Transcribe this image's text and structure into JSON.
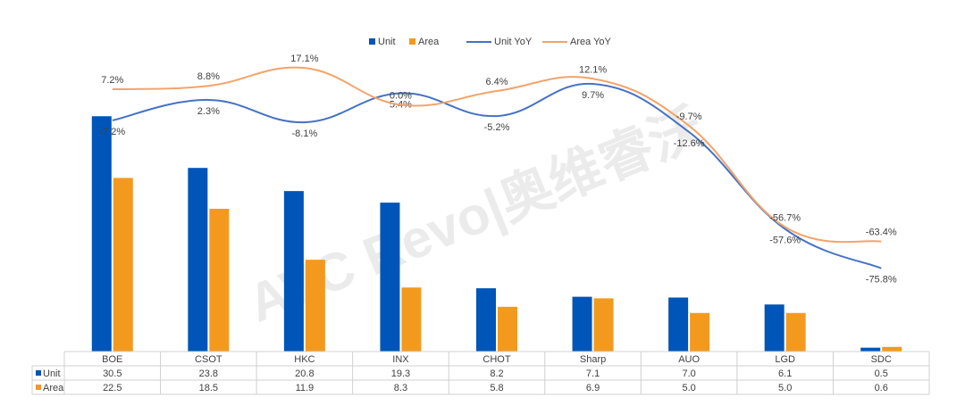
{
  "chart_data": {
    "type": "bar",
    "categories": [
      "BOE",
      "CSOT",
      "HKC",
      "INX",
      "CHOT",
      "Sharp",
      "AUO",
      "LGD",
      "SDC"
    ],
    "series": [
      {
        "name": "Unit",
        "kind": "bar",
        "color": "#0055b8",
        "values": [
          30.5,
          23.8,
          20.8,
          19.3,
          8.2,
          7.1,
          7.0,
          6.1,
          0.5
        ],
        "table_labels": [
          "30.5",
          "23.8",
          "20.8",
          "19.3",
          "8.2",
          "7.1",
          "7.0",
          "6.1",
          "0.5"
        ]
      },
      {
        "name": "Area",
        "kind": "bar",
        "color": "#f39a1e",
        "values": [
          22.5,
          18.5,
          11.9,
          8.3,
          5.8,
          6.9,
          5.0,
          5.0,
          0.6
        ],
        "table_labels": [
          "22.5",
          "18.5",
          "11.9",
          "8.3",
          "5.8",
          "6.9",
          "5.0",
          "5.0",
          "0.6"
        ]
      },
      {
        "name": "Unit YoY",
        "kind": "line",
        "color": "#4472c4",
        "values": [
          -7.2,
          2.3,
          -8.1,
          5.4,
          -5.2,
          9.7,
          -12.6,
          -57.6,
          -75.8
        ],
        "labels": [
          "-7.2%",
          "2.3%",
          "-8.1%",
          "5.4%",
          "-5.2%",
          "9.7%",
          "-12.6%",
          "-57.6%",
          "-75.8%"
        ]
      },
      {
        "name": "Area YoY",
        "kind": "line",
        "color": "#f4a36a",
        "values": [
          7.2,
          8.8,
          17.1,
          0.0,
          6.4,
          12.1,
          -9.7,
          -56.7,
          -63.4
        ],
        "labels": [
          "7.2%",
          "8.8%",
          "17.1%",
          "0.0%",
          "6.4%",
          "12.1%",
          "-9.7%",
          "-56.7%",
          "-63.4%"
        ]
      }
    ],
    "bar_ylim": [
      0,
      34
    ],
    "yoy_ylim": [
      -90,
      30
    ],
    "legend": {
      "position": "top-center",
      "entries": [
        "Unit",
        "Area",
        "Unit YoY",
        "Area YoY"
      ]
    },
    "grid": false,
    "watermark": "AVC Revo|奥维睿沃"
  }
}
